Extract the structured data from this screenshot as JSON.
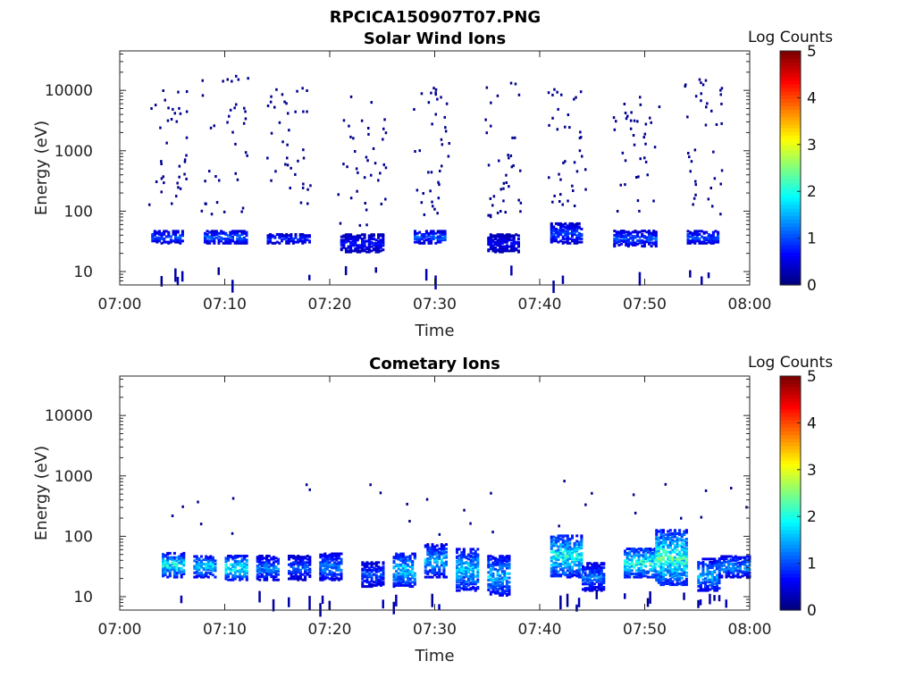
{
  "figure_title": "RPCICA150907T07.PNG",
  "chart_data": [
    {
      "type": "heatmap",
      "title": "Solar Wind Ions",
      "xlabel": "Time",
      "ylabel": "Energy (eV)",
      "x_ticks": [
        "07:00",
        "07:10",
        "07:20",
        "07:30",
        "07:40",
        "07:50",
        "08:00"
      ],
      "x_range": [
        "07:00",
        "08:00"
      ],
      "y_scale": "log",
      "y_ticks": [
        "10",
        "100",
        "1000",
        "10000"
      ],
      "y_range": [
        6,
        45000
      ],
      "colorbar": {
        "label": "Log Counts",
        "range": [
          0,
          5
        ],
        "ticks": [
          "0",
          "1",
          "2",
          "3",
          "4",
          "5"
        ],
        "colormap": "jet"
      },
      "bursts": [
        {
          "start": "07:03",
          "end": "07:06",
          "band_energy_eV": [
            28,
            45
          ],
          "peak_log_counts": 1.2,
          "scatter_energy_eV": [
            90,
            12000
          ]
        },
        {
          "start": "07:08",
          "end": "07:12",
          "band_energy_eV": [
            28,
            45
          ],
          "peak_log_counts": 1.3,
          "scatter_energy_eV": [
            90,
            20000
          ]
        },
        {
          "start": "07:14",
          "end": "07:18",
          "band_energy_eV": [
            28,
            40
          ],
          "peak_log_counts": 1.0,
          "scatter_energy_eV": [
            100,
            12000
          ]
        },
        {
          "start": "07:21",
          "end": "07:25",
          "band_energy_eV": [
            20,
            40
          ],
          "peak_log_counts": 0.8,
          "scatter_energy_eV": [
            60,
            9000
          ]
        },
        {
          "start": "07:28",
          "end": "07:31",
          "band_energy_eV": [
            28,
            45
          ],
          "peak_log_counts": 1.3,
          "scatter_energy_eV": [
            90,
            12000
          ]
        },
        {
          "start": "07:35",
          "end": "07:38",
          "band_energy_eV": [
            20,
            40
          ],
          "peak_log_counts": 0.7,
          "scatter_energy_eV": [
            80,
            14000
          ]
        },
        {
          "start": "07:41",
          "end": "07:44",
          "band_energy_eV": [
            28,
            60
          ],
          "peak_log_counts": 1.1,
          "scatter_energy_eV": [
            100,
            11000
          ]
        },
        {
          "start": "07:47",
          "end": "07:51",
          "band_energy_eV": [
            25,
            45
          ],
          "peak_log_counts": 1.2,
          "scatter_energy_eV": [
            100,
            10000
          ]
        },
        {
          "start": "07:54",
          "end": "07:57",
          "band_energy_eV": [
            28,
            45
          ],
          "peak_log_counts": 1.2,
          "scatter_energy_eV": [
            90,
            17000
          ]
        }
      ]
    },
    {
      "type": "heatmap",
      "title": "Cometary Ions",
      "xlabel": "Time",
      "ylabel": "Energy (eV)",
      "x_ticks": [
        "07:00",
        "07:10",
        "07:20",
        "07:30",
        "07:40",
        "07:50",
        "08:00"
      ],
      "x_range": [
        "07:00",
        "08:00"
      ],
      "y_scale": "log",
      "y_ticks": [
        "10",
        "100",
        "1000",
        "10000"
      ],
      "y_range": [
        6,
        45000
      ],
      "colorbar": {
        "label": "Log Counts",
        "range": [
          0,
          5
        ],
        "ticks": [
          "0",
          "1",
          "2",
          "3",
          "4",
          "5"
        ],
        "colormap": "jet"
      },
      "bursts": [
        {
          "start": "07:04",
          "end": "07:06",
          "band_energy_eV": [
            20,
            50
          ],
          "peak_log_counts": 2.2
        },
        {
          "start": "07:07",
          "end": "07:09",
          "band_energy_eV": [
            20,
            45
          ],
          "peak_log_counts": 2.0
        },
        {
          "start": "07:10",
          "end": "07:12",
          "band_energy_eV": [
            18,
            45
          ],
          "peak_log_counts": 2.3
        },
        {
          "start": "07:13",
          "end": "07:15",
          "band_energy_eV": [
            18,
            45
          ],
          "peak_log_counts": 1.5
        },
        {
          "start": "07:16",
          "end": "07:18",
          "band_energy_eV": [
            18,
            45
          ],
          "peak_log_counts": 1.2
        },
        {
          "start": "07:19",
          "end": "07:21",
          "band_energy_eV": [
            18,
            50
          ],
          "peak_log_counts": 1.5
        },
        {
          "start": "07:23",
          "end": "07:25",
          "band_energy_eV": [
            14,
            35
          ],
          "peak_log_counts": 1.2
        },
        {
          "start": "07:26",
          "end": "07:28",
          "band_energy_eV": [
            14,
            50
          ],
          "peak_log_counts": 2.0
        },
        {
          "start": "07:29",
          "end": "07:31",
          "band_energy_eV": [
            20,
            70
          ],
          "peak_log_counts": 1.8
        },
        {
          "start": "07:32",
          "end": "07:34",
          "band_energy_eV": [
            12,
            60
          ],
          "peak_log_counts": 1.9
        },
        {
          "start": "07:35",
          "end": "07:37",
          "band_energy_eV": [
            10,
            45
          ],
          "peak_log_counts": 1.8
        },
        {
          "start": "07:41",
          "end": "07:44",
          "band_energy_eV": [
            20,
            100
          ],
          "peak_log_counts": 2.3
        },
        {
          "start": "07:44",
          "end": "07:46",
          "band_energy_eV": [
            12,
            35
          ],
          "peak_log_counts": 1.4
        },
        {
          "start": "07:48",
          "end": "07:51",
          "band_energy_eV": [
            20,
            60
          ],
          "peak_log_counts": 2.4
        },
        {
          "start": "07:51",
          "end": "07:54",
          "band_energy_eV": [
            15,
            120
          ],
          "peak_log_counts": 2.5
        },
        {
          "start": "07:55",
          "end": "07:57",
          "band_energy_eV": [
            12,
            40
          ],
          "peak_log_counts": 1.8
        },
        {
          "start": "07:57",
          "end": "08:00",
          "band_energy_eV": [
            20,
            45
          ],
          "peak_log_counts": 1.6
        }
      ]
    }
  ]
}
